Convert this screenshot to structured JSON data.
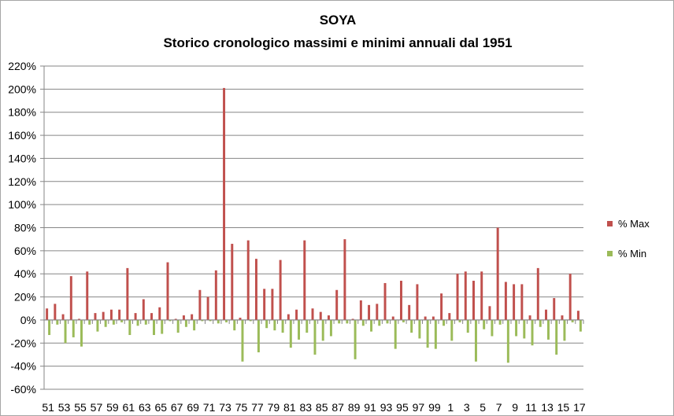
{
  "chart_data": {
    "type": "bar",
    "title": "SOYA",
    "subtitle": "Storico cronologico massimi e minimi annuali dal 1951",
    "xlabel": "",
    "ylabel": "",
    "ylim": [
      -60,
      220
    ],
    "y_ticks": [
      -60,
      -40,
      -20,
      0,
      20,
      40,
      60,
      80,
      100,
      120,
      140,
      160,
      180,
      200,
      220
    ],
    "y_tick_labels": [
      "-60%",
      "-40%",
      "-20%",
      "0%",
      "20%",
      "40%",
      "60%",
      "80%",
      "100%",
      "120%",
      "140%",
      "160%",
      "180%",
      "200%",
      "220%"
    ],
    "grid": true,
    "legend_position": "right",
    "categories": [
      "51",
      "52",
      "53",
      "54",
      "55",
      "56",
      "57",
      "58",
      "59",
      "60",
      "61",
      "62",
      "63",
      "64",
      "65",
      "66",
      "67",
      "68",
      "69",
      "70",
      "71",
      "72",
      "73",
      "74",
      "75",
      "76",
      "77",
      "78",
      "79",
      "80",
      "81",
      "82",
      "83",
      "84",
      "85",
      "86",
      "87",
      "88",
      "89",
      "90",
      "91",
      "92",
      "93",
      "94",
      "95",
      "96",
      "97",
      "98",
      "99",
      "0",
      "1",
      "2",
      "3",
      "4",
      "5",
      "6",
      "7",
      "8",
      "9",
      "10",
      "11",
      "12",
      "13",
      "14",
      "15",
      "16",
      "17"
    ],
    "x_tick_labels": [
      "51",
      "53",
      "55",
      "57",
      "59",
      "61",
      "63",
      "65",
      "67",
      "69",
      "71",
      "73",
      "75",
      "77",
      "79",
      "81",
      "83",
      "85",
      "87",
      "89",
      "91",
      "93",
      "95",
      "97",
      "99",
      "1",
      "3",
      "5",
      "7",
      "9",
      "11",
      "13",
      "15",
      "17"
    ],
    "series": [
      {
        "name": "% Max",
        "color": "#c0504d",
        "values": [
          10,
          14,
          5,
          38,
          1,
          42,
          6,
          7,
          9,
          9,
          45,
          6,
          18,
          6,
          11,
          50,
          1,
          4,
          5,
          26,
          20,
          43,
          201,
          66,
          2,
          69,
          53,
          27,
          27,
          52,
          5,
          9,
          69,
          10,
          7,
          4,
          26,
          70,
          1,
          17,
          13,
          14,
          32,
          3,
          34,
          13,
          31,
          3,
          3,
          23,
          6,
          40,
          42,
          34,
          42,
          12,
          80,
          33,
          31,
          31,
          4,
          45,
          9,
          19,
          4,
          40,
          8
        ]
      },
      {
        "name": "% Min",
        "color": "#9bbb59",
        "values": [
          -13,
          -4,
          -20,
          -15,
          -23,
          -4,
          -10,
          -6,
          -4,
          -2,
          -13,
          -5,
          -4,
          -13,
          -12,
          -1,
          -11,
          -6,
          -9,
          -1,
          -1,
          -3,
          -2,
          -9,
          -36,
          -1,
          -28,
          -7,
          -9,
          -11,
          -24,
          -17,
          -11,
          -30,
          -18,
          -14,
          -3,
          -3,
          -34,
          -5,
          -10,
          -5,
          -3,
          -25,
          -2,
          -11,
          -16,
          -24,
          -25,
          -5,
          -18,
          -2,
          -11,
          -36,
          -8,
          -14,
          -4,
          -37,
          -14,
          -16,
          -22,
          -6,
          -17,
          -30,
          -18,
          -2,
          -10
        ]
      }
    ]
  }
}
